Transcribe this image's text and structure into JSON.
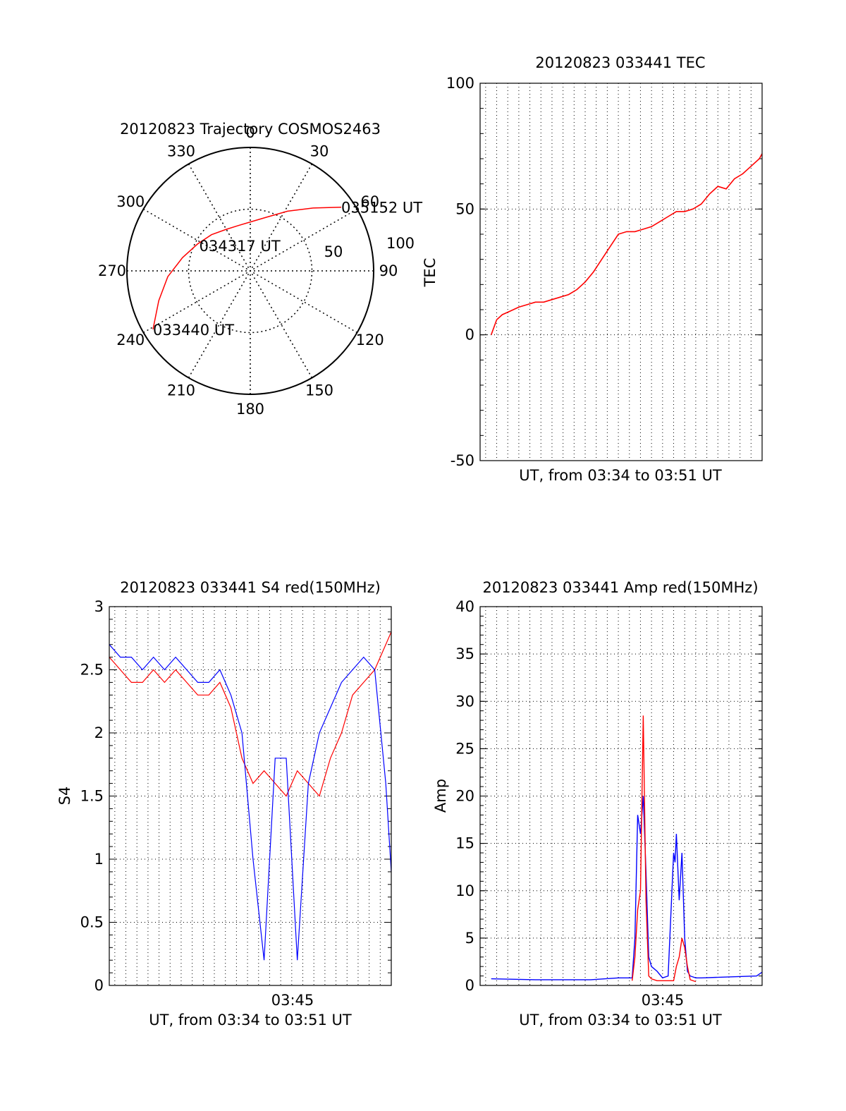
{
  "chart_data": [
    {
      "type": "polar-trajectory",
      "title": "20120823 Trajectory COSMOS2463",
      "angle_labels": [
        "0",
        "30",
        "60",
        "90",
        "120",
        "150",
        "180",
        "210",
        "240",
        "270",
        "300",
        "330"
      ],
      "radial_labels": [
        "50",
        "100"
      ],
      "rmax": 100,
      "trajectory": [
        [
          239,
          92
        ],
        [
          252,
          78
        ],
        [
          266,
          67
        ],
        [
          281,
          56
        ],
        [
          297,
          48
        ],
        [
          313,
          43
        ],
        [
          329,
          39
        ],
        [
          345,
          38
        ],
        [
          2,
          40
        ],
        [
          18,
          46
        ],
        [
          32,
          57
        ],
        [
          45,
          72
        ],
        [
          55,
          90
        ]
      ],
      "point_labels": [
        {
          "text": "033440 UT",
          "az": 239,
          "r": 92
        },
        {
          "text": "034317 UT",
          "az": 297,
          "r": 48
        },
        {
          "text": "035152 UT",
          "az": 55,
          "r": 90
        }
      ],
      "colors": {
        "trajectory": "#ff0000"
      }
    },
    {
      "type": "line",
      "title": "20120823 033441 TEC",
      "xlabel": "UT, from 03:34 to 03:51 UT",
      "ylabel": "TEC",
      "xlim": [
        0,
        1020
      ],
      "ylim": [
        -50,
        100
      ],
      "yticks": [
        "-50",
        "0",
        "50",
        "100"
      ],
      "grid": true,
      "x_gridlines_s": [
        20,
        60,
        100,
        140,
        180,
        220,
        260,
        300,
        340,
        380,
        420,
        460,
        500,
        540,
        580,
        620,
        660,
        700,
        740,
        780,
        820,
        860,
        900,
        940,
        980
      ],
      "series": [
        {
          "color": "#ff0000",
          "x": [
            40,
            60,
            80,
            100,
            120,
            140,
            170,
            200,
            230,
            260,
            290,
            320,
            350,
            380,
            410,
            440,
            470,
            500,
            530,
            560,
            590,
            620,
            650,
            680,
            710,
            740,
            770,
            800,
            830,
            860,
            890,
            920,
            950,
            980,
            1010,
            1020
          ],
          "y": [
            0,
            6,
            8,
            9,
            10,
            11,
            12,
            13,
            13,
            14,
            15,
            16,
            18,
            21,
            25,
            30,
            35,
            40,
            41,
            41,
            42,
            43,
            45,
            47,
            49,
            49,
            50,
            52,
            56,
            59,
            58,
            62,
            64,
            67,
            70,
            72
          ]
        }
      ]
    },
    {
      "type": "line",
      "title": "20120823 033441 S4 red(150MHz)",
      "xlabel": "UT, from 03:34 to 03:51 UT",
      "ylabel": "S4",
      "xtick_label": "03:45",
      "xlim": [
        0,
        1020
      ],
      "ylim": [
        0,
        3
      ],
      "yticks": [
        "0",
        "0.5",
        "1",
        "1.5",
        "2",
        "2.5",
        "3"
      ],
      "grid": true,
      "series": [
        {
          "color": "#ff0000",
          "x": [
            0,
            40,
            80,
            120,
            160,
            200,
            240,
            280,
            320,
            360,
            400,
            440,
            480,
            520,
            560,
            600,
            640,
            680,
            720,
            760,
            800,
            840,
            880,
            920,
            960,
            1000,
            1020
          ],
          "y": [
            2.6,
            2.5,
            2.4,
            2.4,
            2.5,
            2.4,
            2.5,
            2.4,
            2.3,
            2.3,
            2.4,
            2.2,
            1.8,
            1.6,
            1.7,
            1.6,
            1.5,
            1.7,
            1.6,
            1.5,
            1.8,
            2.0,
            2.3,
            2.4,
            2.5,
            2.7,
            2.8
          ]
        },
        {
          "color": "#0000ff",
          "x": [
            0,
            40,
            80,
            120,
            160,
            200,
            240,
            280,
            320,
            360,
            400,
            440,
            480,
            520,
            560,
            600,
            640,
            680,
            720,
            760,
            800,
            840,
            880,
            920,
            960,
            1000,
            1020
          ],
          "y": [
            2.7,
            2.6,
            2.6,
            2.5,
            2.6,
            2.5,
            2.6,
            2.5,
            2.4,
            2.4,
            2.5,
            2.3,
            2.0,
            1.0,
            0.2,
            1.8,
            1.8,
            0.2,
            1.6,
            2.0,
            2.2,
            2.4,
            2.5,
            2.6,
            2.5,
            1.6,
            0.9
          ]
        }
      ]
    },
    {
      "type": "line",
      "title": "20120823 033441 Amp red(150MHz)",
      "xlabel": "UT, from 03:34 to 03:51 UT",
      "ylabel": "Amp",
      "xtick_label": "03:45",
      "xlim": [
        0,
        1020
      ],
      "ylim": [
        0,
        40
      ],
      "yticks": [
        "0",
        "5",
        "10",
        "15",
        "20",
        "25",
        "30",
        "35",
        "40"
      ],
      "grid": true,
      "series": [
        {
          "color": "#0000ff",
          "x": [
            40,
            200,
            400,
            500,
            550,
            560,
            570,
            580,
            590,
            600,
            610,
            620,
            640,
            660,
            680,
            700,
            705,
            710,
            720,
            730,
            740,
            750,
            760,
            780,
            800,
            900,
            1000,
            1020
          ],
          "y": [
            0.7,
            0.6,
            0.6,
            0.8,
            0.8,
            5,
            18,
            16,
            20,
            12,
            3,
            2,
            1.5,
            0.8,
            1,
            14,
            13,
            16,
            9,
            14,
            5,
            1.5,
            1,
            0.8,
            0.8,
            0.9,
            1.0,
            1.4
          ]
        },
        {
          "color": "#ff0000",
          "x": [
            550,
            560,
            570,
            580,
            590,
            600,
            610,
            620,
            640,
            700,
            710,
            720,
            730,
            740,
            750,
            760,
            780
          ],
          "y": [
            0.5,
            3,
            8,
            10,
            28.5,
            9,
            1,
            0.7,
            0.5,
            0.5,
            2,
            3,
            5,
            4,
            2,
            0.6,
            0.4
          ]
        }
      ]
    }
  ]
}
